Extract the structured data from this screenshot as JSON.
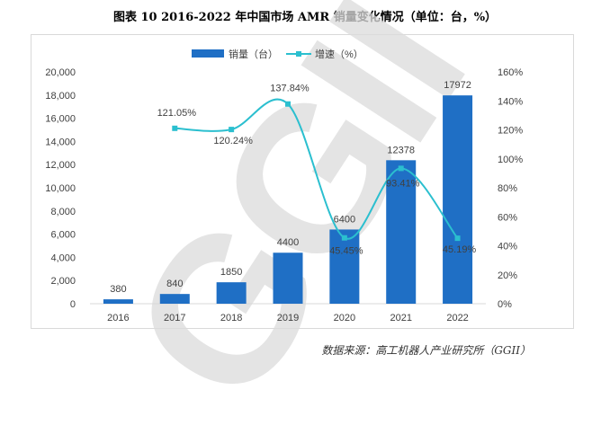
{
  "title": "图表 10   2016-2022 年中国市场 AMR 销量变化情况（单位：台，%）",
  "source": "数据来源：高工机器人产业研究所（GGII）",
  "watermark": "GGII",
  "chart_data": {
    "type": "bar",
    "categories": [
      "2016",
      "2017",
      "2018",
      "2019",
      "2020",
      "2021",
      "2022"
    ],
    "series": [
      {
        "name": "销量（台）",
        "type": "bar",
        "axis": "left",
        "color": "#1f6fc5",
        "values": [
          380,
          840,
          1850,
          4400,
          6400,
          12378,
          17972
        ],
        "labels": [
          "380",
          "840",
          "1850",
          "4400",
          "6400",
          "12378",
          "17972"
        ]
      },
      {
        "name": "增速（%）",
        "type": "line",
        "axis": "right",
        "color": "#2bbfcf",
        "values": [
          null,
          121.05,
          120.24,
          137.84,
          45.45,
          93.41,
          45.19
        ],
        "labels": [
          "",
          "121.05%",
          "120.24%",
          "137.84%",
          "45.45%",
          "93.41%",
          "45.19%"
        ]
      }
    ],
    "y_left": {
      "ylim": [
        0,
        20000
      ],
      "ticks": [
        "0",
        "2,000",
        "4,000",
        "6,000",
        "8,000",
        "10,000",
        "12,000",
        "14,000",
        "16,000",
        "18,000",
        "20,000"
      ]
    },
    "y_right": {
      "ylim": [
        0,
        160
      ],
      "ticks": [
        "0%",
        "20%",
        "40%",
        "60%",
        "80%",
        "100%",
        "120%",
        "140%",
        "160%"
      ]
    },
    "legend": "top-center",
    "grid": false
  }
}
